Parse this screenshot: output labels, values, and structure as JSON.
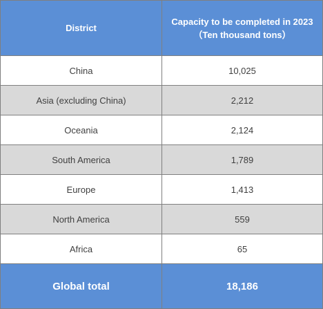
{
  "header": {
    "district": "District",
    "capacity_line1": "Capacity to be completed in 2023",
    "capacity_line2": "（Ten thousand tons）"
  },
  "rows": [
    {
      "district": "China",
      "capacity": "10,025"
    },
    {
      "district": "Asia (excluding China)",
      "capacity": "2,212"
    },
    {
      "district": "Oceania",
      "capacity": "2,124"
    },
    {
      "district": "South America",
      "capacity": "1,789"
    },
    {
      "district": "Europe",
      "capacity": "1,413"
    },
    {
      "district": "North America",
      "capacity": "559"
    },
    {
      "district": "Africa",
      "capacity": "65"
    }
  ],
  "total": {
    "label": "Global total",
    "value": "18,186"
  },
  "colors": {
    "header_bg": "#5b8fd6",
    "shaded_row": "#d9d9d9",
    "border": "#7f7f7f"
  }
}
